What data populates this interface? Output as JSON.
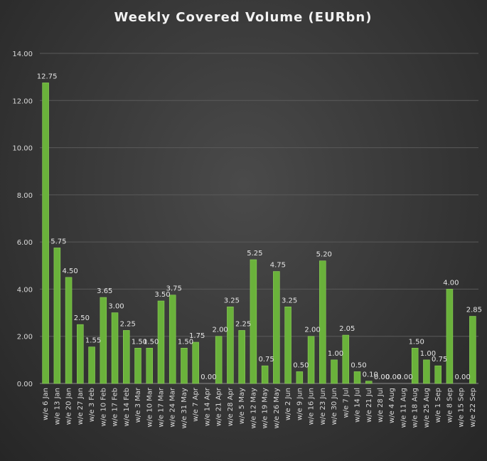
{
  "chart_data": {
    "type": "bar",
    "title": "Weekly Covered Volume (EURbn)",
    "xlabel": "",
    "ylabel": "",
    "ylim": [
      0,
      14
    ],
    "yticks": [
      "0.00",
      "2.00",
      "4.00",
      "6.00",
      "8.00",
      "10.00",
      "12.00",
      "14.00"
    ],
    "grid": true,
    "legend": "none",
    "bar_color": "#6ab23b",
    "categories": [
      "w/e 6 Jan",
      "w/e 13 Jan",
      "w/e 20 Jan",
      "w/e 27 Jan",
      "w/e 3 Feb",
      "w/e 10 Feb",
      "w/e 17 Feb",
      "w/e 14 Feb",
      "w/e 3 Mar",
      "w/e 10 Mar",
      "w/e 17 Mar",
      "w/e 24 Mar",
      "w/e 31 May",
      "w/e 7 Apr",
      "w/e 14 Apr",
      "w/e 21 Apr",
      "w/e 28 Apr",
      "w/e 5 May",
      "w/e 12 May",
      "w/e 19 May",
      "w/e 26 May",
      "w/e 2 Jun",
      "w/e 9 Jun",
      "w/e 16 Jun",
      "w/e 23 Jun",
      "w/e 30 Jun",
      "w/e 7 Jul",
      "w/e 14 Jul",
      "w/e 21 Jul",
      "w/e 28 Jul",
      "w/e 4 Aug",
      "w/e 11 Aug",
      "w/e 18 Aug",
      "w/e 25 Aug",
      "w/e 1 Sep",
      "w/e 8 Sep",
      "w/e 15 Sep",
      "w/e 22 Sep"
    ],
    "values": [
      12.75,
      5.75,
      4.5,
      2.5,
      1.55,
      3.65,
      3.0,
      2.25,
      1.5,
      1.5,
      3.5,
      3.75,
      1.5,
      1.75,
      0.0,
      2.0,
      3.25,
      2.25,
      5.25,
      0.75,
      4.75,
      3.25,
      0.5,
      2.0,
      5.2,
      1.0,
      2.05,
      0.5,
      0.1,
      0.0,
      0.0,
      0.0,
      1.5,
      1.0,
      0.75,
      4.0,
      0.0,
      2.85
    ],
    "data_labels": [
      "12.75",
      "5.75",
      "4.50",
      "2.50",
      "1.55",
      "3.65",
      "3.00",
      "2.25",
      "1.50",
      "1.50",
      "3.50",
      "3.75",
      "1.50",
      "1.75",
      "0.00",
      "2.00",
      "3.25",
      "2.25",
      "5.25",
      "0.75",
      "4.75",
      "3.25",
      "0.50",
      "2.00",
      "5.20",
      "1.00",
      "2.05",
      "0.50",
      "0.10",
      "0.00",
      "0.00",
      "0.00",
      "1.50",
      "1.00",
      "0.75",
      "4.00",
      "0.00",
      "2.85"
    ]
  }
}
